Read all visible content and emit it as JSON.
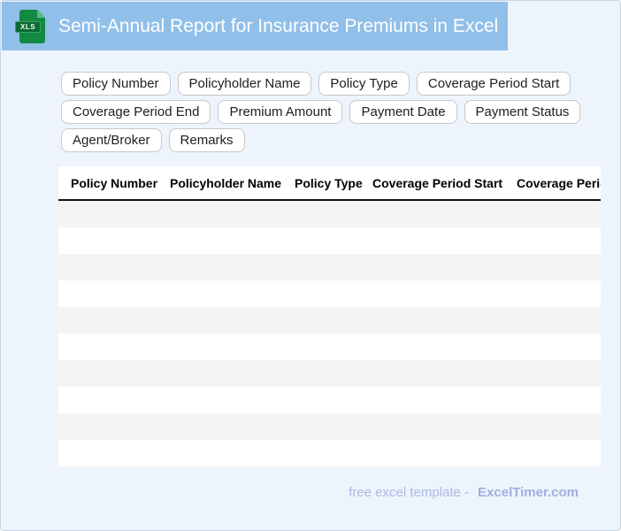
{
  "header": {
    "title": "Semi-Annual Report for Insurance Premiums in Excel",
    "file_badge": "XLS"
  },
  "colors": {
    "banner_blue": "#90bfe9",
    "page_background": "#eef4fc",
    "row_stripe": "#f5f4f5",
    "icon_green": "#128a42",
    "icon_badge_green": "#0b6b31",
    "footer_text_blue": "#aab9e6"
  },
  "chips": [
    "Policy Number",
    "Policyholder Name",
    "Policy Type",
    "Coverage Period Start",
    "Coverage Period End",
    "Premium Amount",
    "Payment Date",
    "Payment Status",
    "Agent/Broker",
    "Remarks"
  ],
  "table": {
    "columns": [
      "Policy Number",
      "Policyholder Name",
      "Policy Type",
      "Coverage Period Start",
      "Coverage Period End"
    ],
    "empty_row_count": 10
  },
  "footer": {
    "text": "free excel template -",
    "brand": "ExcelTimer.com"
  }
}
